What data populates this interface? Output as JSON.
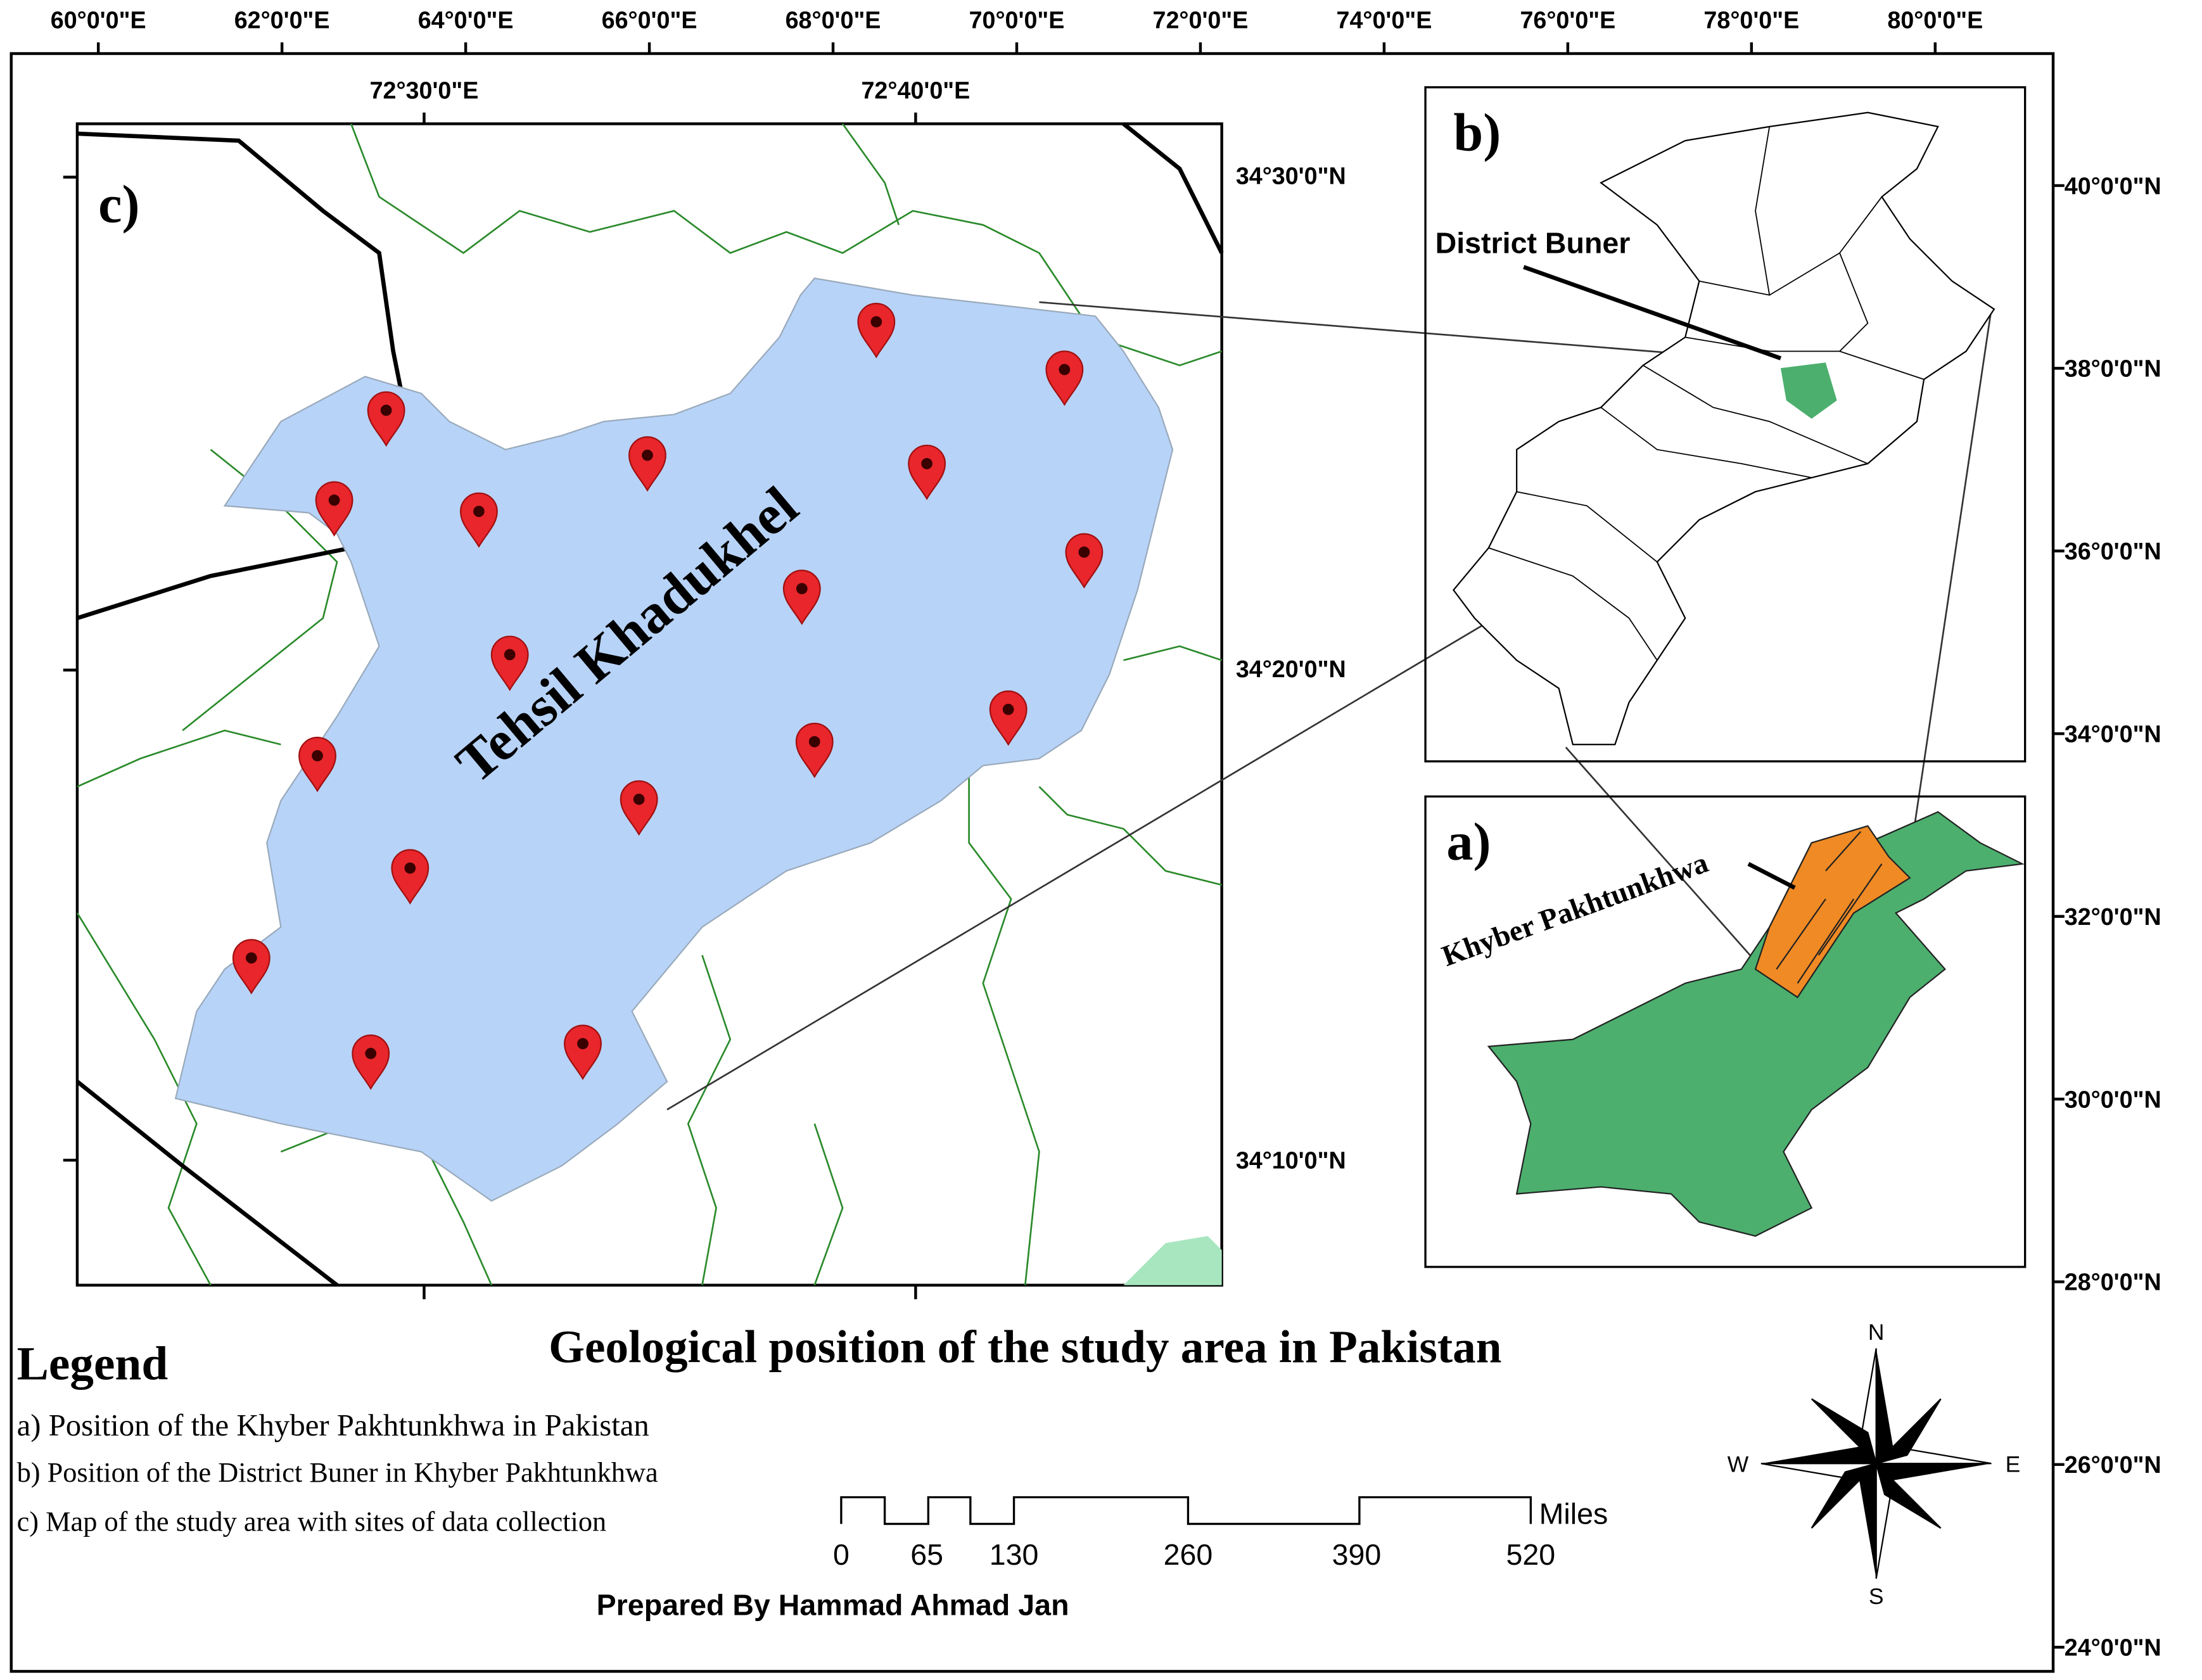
{
  "frame": {
    "top_labels": [
      "60°0'0\"E",
      "62°0'0\"E",
      "64°0'0\"E",
      "66°0'0\"E",
      "68°0'0\"E",
      "70°0'0\"E",
      "72°0'0\"E",
      "74°0'0\"E",
      "76°0'0\"E",
      "78°0'0\"E",
      "80°0'0\"E"
    ],
    "right_labels": [
      "40°0'0\"N",
      "38°0'0\"N",
      "36°0'0\"N",
      "34°0'0\"N",
      "32°0'0\"N",
      "30°0'0\"N",
      "28°0'0\"N",
      "26°0'0\"N",
      "24°0'0\"N"
    ]
  },
  "panel_c": {
    "label": "c)",
    "top_labels": [
      "72°30'0\"E",
      "72°40'0\"E"
    ],
    "right_labels": [
      "34°30'0\"N",
      "34°20'0\"N",
      "34°10'0\"N"
    ],
    "area_label": "Tehsil Khadukhel"
  },
  "panel_b": {
    "label": "b)",
    "annotation": "District Buner"
  },
  "panel_a": {
    "label": "a)",
    "annotation": "Khyber Pakhtunkhwa"
  },
  "title": "Geological position of the study area in Pakistan",
  "legend": {
    "title": "Legend",
    "items": [
      "a) Position of the Khyber Pakhtunkhwa in Pakistan",
      "b) Position of the District Buner in Khyber Pakhtunkhwa",
      "c) Map of the study area with sites of data collection"
    ]
  },
  "scale_bar": {
    "unit": "Miles",
    "labels": [
      "0",
      "65",
      "130",
      "260",
      "390",
      "520"
    ]
  },
  "compass": {
    "n": "N",
    "e": "E",
    "s": "S",
    "w": "W"
  },
  "credit": "Prepared By Hammad Ahmad Jan"
}
